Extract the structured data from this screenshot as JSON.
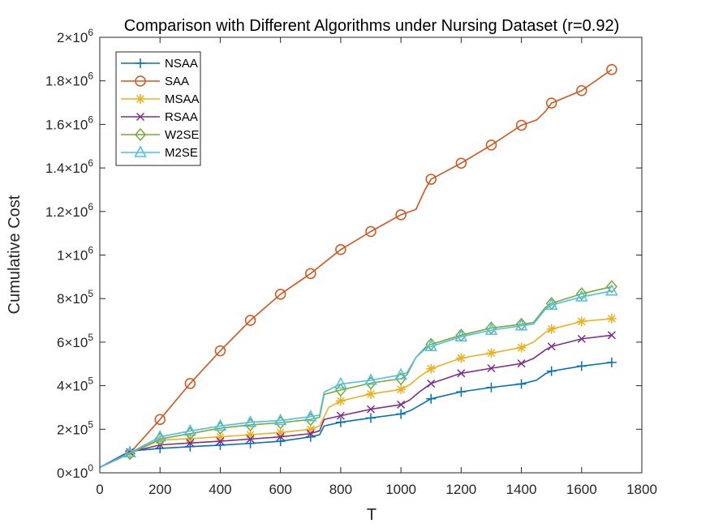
{
  "chart_data": {
    "type": "line",
    "title": "Comparison with Different Algorithms under Nursing Dataset (r=0.92)",
    "xlabel": "T",
    "ylabel": "Cumulative Cost",
    "xlim": [
      0,
      1800
    ],
    "ylim": [
      0,
      2000000
    ],
    "grid": false,
    "legend_position": "top-left",
    "x_ticks": [
      0,
      200,
      400,
      600,
      800,
      1000,
      1200,
      1400,
      1600,
      1800
    ],
    "x_tick_labels": [
      "0",
      "200",
      "400",
      "600",
      "800",
      "1000",
      "1200",
      "1400",
      "1600",
      "1800"
    ],
    "y_ticks": [
      {
        "value": 0,
        "mantissa": "0",
        "exp": "0"
      },
      {
        "value": 200000,
        "mantissa": "2",
        "exp": "5"
      },
      {
        "value": 400000,
        "mantissa": "4",
        "exp": "5"
      },
      {
        "value": 600000,
        "mantissa": "6",
        "exp": "5"
      },
      {
        "value": 800000,
        "mantissa": "8",
        "exp": "5"
      },
      {
        "value": 1000000,
        "mantissa": "1",
        "exp": "6"
      },
      {
        "value": 1200000,
        "mantissa": "1.2",
        "exp": "6"
      },
      {
        "value": 1400000,
        "mantissa": "1.4",
        "exp": "6"
      },
      {
        "value": 1600000,
        "mantissa": "1.6",
        "exp": "6"
      },
      {
        "value": 1800000,
        "mantissa": "1.8",
        "exp": "6"
      },
      {
        "value": 2000000,
        "mantissa": "2",
        "exp": "6"
      }
    ],
    "series": [
      {
        "name": "NSAA",
        "color": "#0072BD",
        "marker": "plus",
        "x": [
          0,
          100,
          200,
          300,
          400,
          500,
          600,
          700,
          730,
          745,
          800,
          900,
          1000,
          1030,
          1050,
          1100,
          1200,
          1300,
          1400,
          1450,
          1480,
          1500,
          1600,
          1700
        ],
        "y": [
          25000,
          100000,
          112000,
          120000,
          127000,
          135000,
          145000,
          165000,
          175000,
          215000,
          232000,
          252000,
          270000,
          285000,
          300000,
          340000,
          372000,
          392000,
          408000,
          425000,
          455000,
          467000,
          490000,
          507000
        ],
        "marker_x": [
          100,
          200,
          300,
          400,
          500,
          600,
          700,
          800,
          900,
          1000,
          1100,
          1200,
          1300,
          1400,
          1500,
          1600,
          1700
        ]
      },
      {
        "name": "SAA",
        "color": "#D95319",
        "marker": "circle",
        "x": [
          0,
          100,
          200,
          300,
          400,
          500,
          600,
          700,
          800,
          900,
          1000,
          1050,
          1080,
          1100,
          1200,
          1300,
          1400,
          1450,
          1480,
          1500,
          1600,
          1700
        ],
        "y": [
          25000,
          90000,
          245000,
          410000,
          560000,
          700000,
          820000,
          915000,
          1025000,
          1108000,
          1185000,
          1210000,
          1300000,
          1348000,
          1422000,
          1505000,
          1596000,
          1620000,
          1660000,
          1698000,
          1755000,
          1852000
        ],
        "marker_x": [
          200,
          300,
          400,
          500,
          600,
          700,
          800,
          900,
          1000,
          1100,
          1200,
          1300,
          1400,
          1500,
          1600,
          1700
        ]
      },
      {
        "name": "MSAA",
        "color": "#EDB120",
        "marker": "asterisk",
        "x": [
          0,
          100,
          200,
          300,
          400,
          500,
          600,
          700,
          730,
          760,
          800,
          900,
          1000,
          1030,
          1060,
          1100,
          1200,
          1300,
          1400,
          1440,
          1480,
          1500,
          1600,
          1700
        ],
        "y": [
          25000,
          90000,
          150000,
          157000,
          165000,
          175000,
          185000,
          200000,
          215000,
          300000,
          330000,
          362000,
          383000,
          405000,
          440000,
          478000,
          527000,
          550000,
          575000,
          600000,
          645000,
          660000,
          695000,
          708000
        ],
        "marker_x": [
          100,
          200,
          300,
          400,
          500,
          600,
          700,
          800,
          900,
          1000,
          1100,
          1200,
          1300,
          1400,
          1500,
          1600,
          1700
        ]
      },
      {
        "name": "RSAA",
        "color": "#7E2F8E",
        "marker": "cross",
        "x": [
          0,
          100,
          200,
          300,
          400,
          500,
          600,
          700,
          730,
          745,
          800,
          900,
          1000,
          1030,
          1060,
          1100,
          1200,
          1300,
          1400,
          1440,
          1480,
          1500,
          1600,
          1700
        ],
        "y": [
          25000,
          95000,
          128000,
          137000,
          145000,
          155000,
          165000,
          180000,
          193000,
          245000,
          262000,
          292000,
          313000,
          335000,
          370000,
          410000,
          457000,
          480000,
          502000,
          525000,
          565000,
          580000,
          615000,
          632000
        ],
        "marker_x": [
          100,
          200,
          300,
          400,
          500,
          600,
          700,
          800,
          900,
          1000,
          1100,
          1200,
          1300,
          1400,
          1500,
          1600,
          1700
        ]
      },
      {
        "name": "W2SE",
        "color": "#77AC30",
        "marker": "diamond",
        "x": [
          0,
          100,
          200,
          300,
          400,
          500,
          600,
          700,
          730,
          745,
          800,
          900,
          1000,
          1020,
          1050,
          1080,
          1100,
          1200,
          1300,
          1400,
          1440,
          1480,
          1500,
          1600,
          1700
        ],
        "y": [
          25000,
          88000,
          155000,
          180000,
          205000,
          220000,
          230000,
          245000,
          255000,
          360000,
          380000,
          412000,
          432000,
          450000,
          530000,
          575000,
          590000,
          632000,
          665000,
          682000,
          690000,
          760000,
          778000,
          822000,
          855000
        ],
        "marker_x": [
          100,
          200,
          300,
          400,
          500,
          600,
          700,
          800,
          900,
          1000,
          1100,
          1200,
          1300,
          1400,
          1500,
          1600,
          1700
        ]
      },
      {
        "name": "M2SE",
        "color": "#4DBEEE",
        "marker": "triangle",
        "x": [
          0,
          100,
          200,
          300,
          400,
          500,
          600,
          700,
          730,
          745,
          800,
          900,
          1000,
          1020,
          1050,
          1080,
          1100,
          1200,
          1300,
          1400,
          1440,
          1480,
          1500,
          1600,
          1700
        ],
        "y": [
          25000,
          92000,
          165000,
          192000,
          215000,
          232000,
          240000,
          258000,
          265000,
          370000,
          408000,
          425000,
          450000,
          460000,
          530000,
          568000,
          580000,
          625000,
          655000,
          675000,
          683000,
          752000,
          770000,
          808000,
          835000
        ],
        "marker_x": [
          100,
          200,
          300,
          400,
          500,
          600,
          700,
          800,
          900,
          1000,
          1100,
          1200,
          1300,
          1400,
          1500,
          1600,
          1700
        ]
      }
    ]
  }
}
